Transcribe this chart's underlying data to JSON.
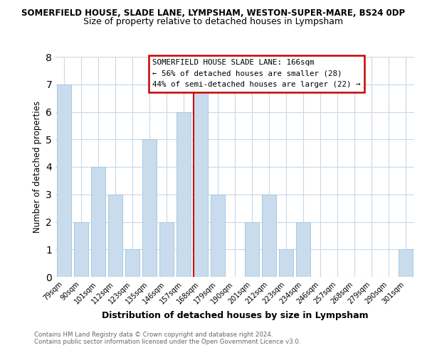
{
  "title_main": "SOMERFIELD HOUSE, SLADE LANE, LYMPSHAM, WESTON-SUPER-MARE, BS24 0DP",
  "title_sub": "Size of property relative to detached houses in Lympsham",
  "xlabel": "Distribution of detached houses by size in Lympsham",
  "ylabel": "Number of detached properties",
  "categories": [
    "79sqm",
    "90sqm",
    "101sqm",
    "112sqm",
    "123sqm",
    "135sqm",
    "146sqm",
    "157sqm",
    "168sqm",
    "179sqm",
    "190sqm",
    "201sqm",
    "212sqm",
    "223sqm",
    "234sqm",
    "246sqm",
    "257sqm",
    "268sqm",
    "279sqm",
    "290sqm",
    "301sqm"
  ],
  "values": [
    7,
    2,
    4,
    3,
    1,
    5,
    2,
    6,
    7,
    3,
    0,
    2,
    3,
    1,
    2,
    0,
    0,
    0,
    0,
    0,
    1
  ],
  "bar_color": "#c8dcee",
  "bar_edge_color": "#a8c8e0",
  "highlight_index": 8,
  "highlight_line_color": "#cc0000",
  "ylim": [
    0,
    8
  ],
  "yticks": [
    0,
    1,
    2,
    3,
    4,
    5,
    6,
    7,
    8
  ],
  "annotation_title": "SOMERFIELD HOUSE SLADE LANE: 166sqm",
  "annotation_line1": "← 56% of detached houses are smaller (28)",
  "annotation_line2": "44% of semi-detached houses are larger (22) →",
  "annotation_box_color": "#ffffff",
  "annotation_box_edge": "#cc0000",
  "footer1": "Contains HM Land Registry data © Crown copyright and database right 2024.",
  "footer2": "Contains public sector information licensed under the Open Government Licence v3.0.",
  "bg_color": "#ffffff",
  "plot_bg_color": "#ffffff",
  "grid_color": "#c8d8e8"
}
